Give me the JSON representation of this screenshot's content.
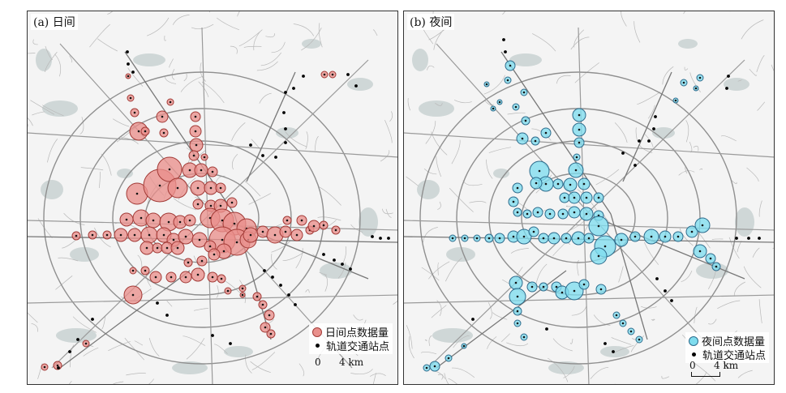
{
  "panels": [
    {
      "title": "(a) 日间",
      "legend_density_label": "日间点数据量",
      "legend_station_label": "轨道交通站点",
      "scale_zero": "0",
      "scale_four": "4 km",
      "circle_fill": "#e9908c",
      "circle_stroke": "#a23a36"
    },
    {
      "title": "(b) 夜间",
      "legend_density_label": "夜间点数据量",
      "legend_station_label": "轨道交通站点",
      "scale_zero": "0",
      "scale_four": "4 km",
      "circle_fill": "#7fdcee",
      "circle_stroke": "#2d6b8c"
    }
  ],
  "colors": {
    "background": "#f4f4f4",
    "roads": "#b9b9b9",
    "water": "#c6cfcf",
    "rail": "#777777",
    "station": "#000000"
  }
}
